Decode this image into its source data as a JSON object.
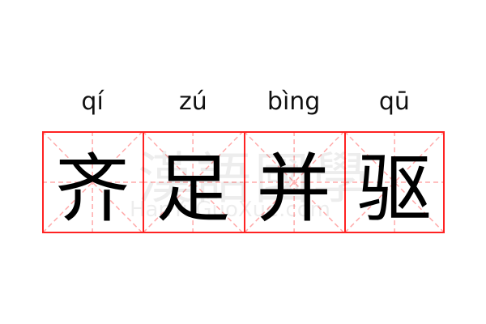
{
  "entries": [
    {
      "pinyin": "qí",
      "char": "齐"
    },
    {
      "pinyin": "zú",
      "char": "足"
    },
    {
      "pinyin": "bìng",
      "char": "并"
    },
    {
      "pinyin": "qū",
      "char": "驱"
    }
  ],
  "watermark": {
    "chinese": "漢語國學",
    "latin": "HanYuGuoXue.com"
  },
  "colors": {
    "border": "#ff2222",
    "guide": "#ffaaaa"
  }
}
